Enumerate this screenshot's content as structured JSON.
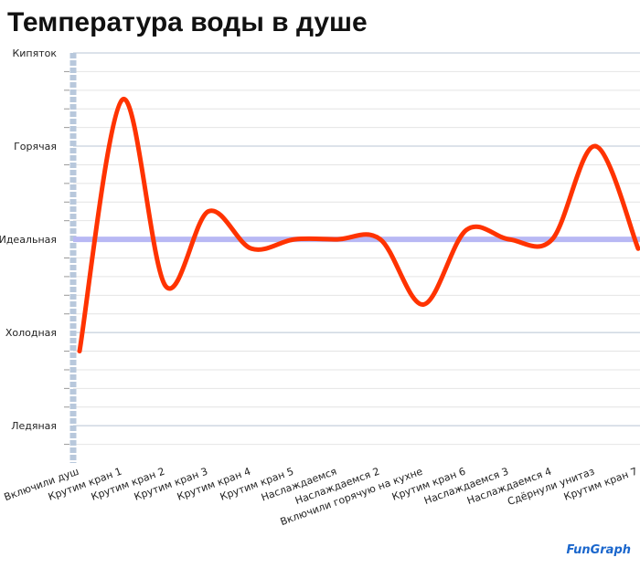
{
  "chart_data": {
    "type": "line",
    "title": "Температура воды в душе",
    "categories": [
      "Включили душ",
      "Крутим кран 1",
      "Крутим кран 2",
      "Крутим кран 3",
      "Крутим кран 4",
      "Крутим кран 5",
      "Наслаждаемся",
      "Наслаждаемся 2",
      "Включили горячую на кухне",
      "Крутим кран 6",
      "Наслаждаемся 3",
      "Наслаждаемся 4",
      "Сдёрнули унитаз",
      "Крутим кран 7"
    ],
    "series": [
      {
        "color": "#ff3300",
        "values": [
          0.8,
          3.5,
          1.5,
          2.3,
          1.9,
          2.0,
          2.0,
          2.0,
          1.3,
          2.1,
          2.0,
          2.0,
          3.0,
          1.9
        ]
      }
    ],
    "reference_line": {
      "value": 2,
      "color": "#b8b8f4"
    },
    "ylim": [
      -0.4,
      4
    ],
    "yticks": [
      {
        "value": 0,
        "label": "Ледяная"
      },
      {
        "value": 1,
        "label": "Холодная"
      },
      {
        "value": 2,
        "label": "Идеальная"
      },
      {
        "value": 3,
        "label": "Горячая"
      },
      {
        "value": 4,
        "label": "Кипяток"
      }
    ],
    "minor_yticks": [
      -0.2,
      0.2,
      0.4,
      0.6,
      0.8,
      1.2,
      1.4,
      1.6,
      1.8,
      2.2,
      2.4,
      2.6,
      2.8,
      3.2,
      3.4,
      3.6,
      3.8
    ],
    "grid": true,
    "watermark": "FunGraph"
  }
}
